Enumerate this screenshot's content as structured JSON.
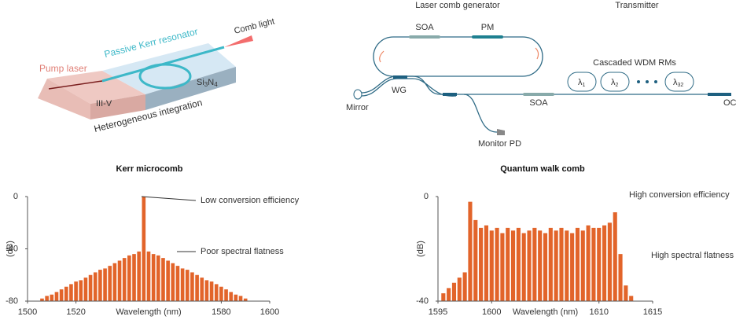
{
  "diagram": {
    "chip": {
      "pump": "Pump laser",
      "resonator": "Passive Kerr resonator",
      "comb": "Comb light",
      "iiiv": "III-V",
      "sin": [
        "Si",
        "3",
        "N",
        "4"
      ],
      "integration": "Heterogeneous integration"
    },
    "link": {
      "generator": "Laser comb generator",
      "transmitter": "Transmitter",
      "soa_loop": "SOA",
      "pm": "PM",
      "rms": "Cascaded WDM RMs",
      "lambdas": [
        [
          "λ",
          "1"
        ],
        [
          "λ",
          "2"
        ],
        [
          "λ",
          "32"
        ]
      ],
      "mirror": "Mirror",
      "wg": "WG",
      "soa": "SOA",
      "oc": "OC",
      "pd": "Monitor PD"
    }
  },
  "chart_data": [
    {
      "type": "stem",
      "title": "Kerr microcomb",
      "xlabel": "Wavelength (nm)",
      "ylabel": "(dB)",
      "color": "#e2642a",
      "annotations": [
        "Low conversion efficiency",
        "Poor spectral flatness"
      ],
      "xlim": [
        1500,
        1600
      ],
      "xticks": [
        1500,
        1520,
        1580,
        1600
      ],
      "ylim": [
        -80,
        0
      ],
      "yticks": [
        -80,
        -40,
        0
      ],
      "x": [
        1504,
        1506,
        1508,
        1510,
        1512,
        1514,
        1516,
        1518,
        1520,
        1522,
        1524,
        1526,
        1528,
        1530,
        1532,
        1534,
        1536,
        1538,
        1540,
        1542,
        1544,
        1546,
        1548,
        1550,
        1552,
        1554,
        1556,
        1558,
        1560,
        1562,
        1564,
        1566,
        1568,
        1570,
        1572,
        1574,
        1576,
        1578,
        1580,
        1582,
        1584,
        1586,
        1588,
        1590,
        1592
      ],
      "values": [
        -80,
        -78,
        -76,
        -75,
        -73,
        -71,
        -69,
        -67,
        -65,
        -64,
        -62,
        -60,
        -58,
        -56,
        -55,
        -53,
        -51,
        -49,
        -47,
        -45,
        -44,
        -42,
        0,
        -42,
        -44,
        -45,
        -47,
        -49,
        -51,
        -53,
        -55,
        -56,
        -58,
        -60,
        -62,
        -64,
        -65,
        -67,
        -69,
        -71,
        -73,
        -75,
        -76,
        -78,
        -80
      ]
    },
    {
      "type": "stem",
      "title": "Quantum walk comb",
      "xlabel": "Wavelength (nm)",
      "ylabel": "(dB)",
      "color": "#e2642a",
      "annotations": [
        "High conversion efficiency",
        "High spectral flatness"
      ],
      "xlim": [
        1595,
        1615
      ],
      "xticks": [
        1595,
        1600,
        1610,
        1615
      ],
      "ylim": [
        -40,
        0
      ],
      "yticks": [
        -40,
        0
      ],
      "x": [
        1595.5,
        1596,
        1596.5,
        1597,
        1597.5,
        1598,
        1598.5,
        1599,
        1599.5,
        1600,
        1600.5,
        1601,
        1601.5,
        1602,
        1602.5,
        1603,
        1603.5,
        1604,
        1604.5,
        1605,
        1605.5,
        1606,
        1606.5,
        1607,
        1607.5,
        1608,
        1608.5,
        1609,
        1609.5,
        1610,
        1610.5,
        1611,
        1611.5,
        1612,
        1612.5,
        1613
      ],
      "values": [
        -37,
        -35,
        -33,
        -31,
        -29,
        -2,
        -9,
        -12,
        -11,
        -13,
        -12,
        -14,
        -12,
        -13,
        -12,
        -14,
        -13,
        -12,
        -13,
        -14,
        -12,
        -13,
        -12,
        -13,
        -14,
        -12,
        -13,
        -11,
        -12,
        -12,
        -11,
        -10,
        -6,
        -22,
        -34,
        -38
      ]
    }
  ]
}
